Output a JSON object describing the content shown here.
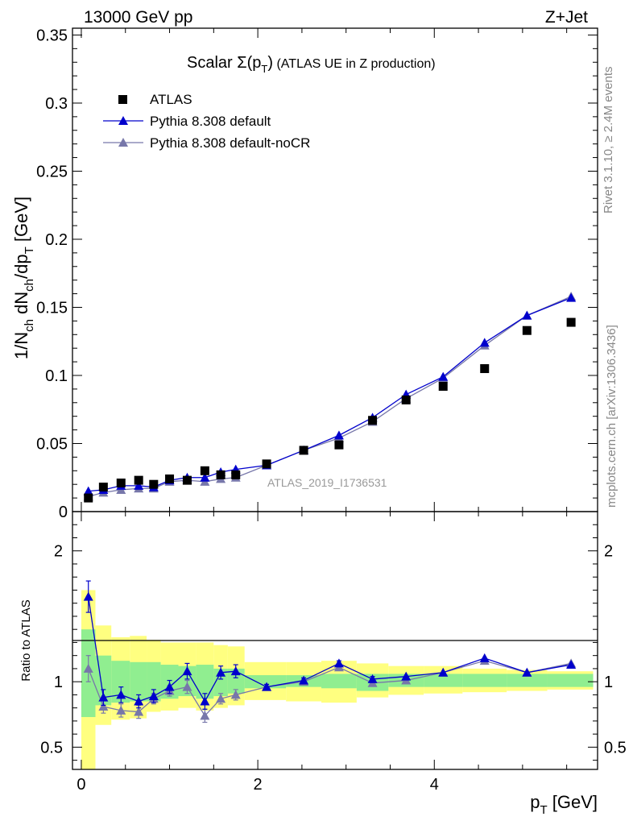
{
  "header": {
    "left": "13000 GeV pp",
    "right": "Z+Jet"
  },
  "side_labels": {
    "rivet": "Rivet 3.1.10, ≥ 2.4M events",
    "mcplots": "mcplots.cern.ch [arXiv:1306.3436]"
  },
  "chart_data": {
    "type": "scatter",
    "title_main": "Scalar ",
    "title_sigma": "Σ(p",
    "title_sub": "T",
    "title_close": ")",
    "title_rest": " (ATLAS UE in Z production)",
    "ylabel": "1/N_ch dN_ch/dp_T [GeV]",
    "xlabel": "p_T [GeV]",
    "ratio_ylabel": "Ratio to ATLAS",
    "analysis_label": "ATLAS_2019_I1736531",
    "xlim": [
      -0.1,
      5.85
    ],
    "ylim": [
      0,
      0.355
    ],
    "ratio_ylim": [
      0.33,
      2.3
    ],
    "y_ticks": [
      0,
      0.05,
      0.1,
      0.15,
      0.2,
      0.25,
      0.3,
      0.35
    ],
    "y_tick_labels": [
      "0",
      "0.05",
      "0.1",
      "0.15",
      "0.2",
      "0.25",
      "0.3",
      "0.35"
    ],
    "x_ticks": [
      0,
      2,
      4
    ],
    "x_tick_labels": [
      "0",
      "2",
      "4"
    ],
    "ratio_ticks": [
      0.5,
      1,
      2
    ],
    "ratio_tick_labels": [
      "0.5",
      "1",
      "2"
    ],
    "legend_position": "top-left",
    "legend": [
      {
        "label": "ATLAS",
        "marker": "square",
        "color": "#000000"
      },
      {
        "label": "Pythia 8.308 default",
        "marker": "triangle",
        "color": "#0000cc"
      },
      {
        "label": "Pythia 8.308 default-noCR",
        "marker": "triangle",
        "color": "#7777aa"
      }
    ],
    "x": [
      0.08,
      0.25,
      0.45,
      0.65,
      0.82,
      1.0,
      1.2,
      1.4,
      1.58,
      1.75,
      2.1,
      2.52,
      2.92,
      3.3,
      3.68,
      4.1,
      4.57,
      5.05,
      5.55
    ],
    "x_edges": [
      0,
      0.16,
      0.34,
      0.55,
      0.74,
      0.9,
      1.1,
      1.3,
      1.5,
      1.66,
      1.85,
      2.32,
      2.72,
      3.12,
      3.48,
      3.88,
      4.32,
      4.82,
      5.28,
      5.8
    ],
    "series": [
      {
        "name": "ATLAS",
        "values": [
          0.01,
          0.018,
          0.021,
          0.023,
          0.02,
          0.024,
          0.023,
          0.03,
          0.027,
          0.027,
          0.035,
          0.045,
          0.049,
          0.067,
          0.082,
          0.092,
          0.105,
          0.133,
          0.139
        ],
        "color": "#000000"
      },
      {
        "name": "Pythia 8.308 default",
        "values": [
          0.015,
          0.016,
          0.019,
          0.019,
          0.018,
          0.023,
          0.025,
          0.025,
          0.029,
          0.031,
          0.034,
          0.045,
          0.056,
          0.069,
          0.086,
          0.099,
          0.124,
          0.144,
          0.157
        ],
        "color": "#0000cc"
      },
      {
        "name": "Pythia 8.308 default-noCR",
        "values": [
          0.011,
          0.014,
          0.016,
          0.017,
          0.017,
          0.022,
          0.023,
          0.022,
          0.024,
          0.025,
          0.034,
          0.045,
          0.054,
          0.066,
          0.083,
          0.098,
          0.122,
          0.144,
          0.158
        ],
        "color": "#7777aa"
      }
    ],
    "ratio_series": [
      {
        "name": "Pythia 8.308 default",
        "values": [
          1.65,
          0.88,
          0.9,
          0.85,
          0.89,
          0.96,
          1.08,
          0.85,
          1.07,
          1.08,
          0.96,
          1.01,
          1.14,
          1.02,
          1.04,
          1.07,
          1.18,
          1.07,
          1.13
        ],
        "errors": [
          0.12,
          0.06,
          0.06,
          0.05,
          0.05,
          0.05,
          0.06,
          0.06,
          0.05,
          0.05,
          0.02,
          0.02,
          0.02,
          0.02,
          0.01,
          0.01,
          0.01,
          0.01,
          0.01
        ],
        "color": "#0000cc"
      },
      {
        "name": "Pythia 8.308 default-noCR",
        "values": [
          1.1,
          0.81,
          0.78,
          0.77,
          0.87,
          0.93,
          0.96,
          0.74,
          0.87,
          0.9,
          0.96,
          1.0,
          1.11,
          0.99,
          1.01,
          1.07,
          1.16,
          1.07,
          1.14
        ],
        "errors": [
          0.1,
          0.05,
          0.05,
          0.05,
          0.04,
          0.04,
          0.05,
          0.05,
          0.04,
          0.04,
          0.02,
          0.02,
          0.02,
          0.02,
          0.01,
          0.01,
          0.01,
          0.01,
          0.01
        ],
        "color": "#7777aa"
      }
    ],
    "band_inner": {
      "lo": [
        0.73,
        0.82,
        0.84,
        0.85,
        0.85,
        0.87,
        0.89,
        0.87,
        0.89,
        0.91,
        0.95,
        0.96,
        0.95,
        0.93,
        0.96,
        0.96,
        0.96,
        0.96,
        0.96
      ],
      "hi": [
        1.4,
        1.2,
        1.16,
        1.15,
        1.15,
        1.13,
        1.12,
        1.13,
        1.1,
        1.1,
        1.05,
        1.05,
        1.06,
        1.06,
        1.06,
        1.06,
        1.06,
        1.06,
        1.06
      ],
      "color": "#90ee90"
    },
    "band_outer": {
      "lo": [
        0.33,
        0.67,
        0.71,
        0.72,
        0.77,
        0.78,
        0.8,
        0.78,
        0.8,
        0.82,
        0.86,
        0.85,
        0.84,
        0.88,
        0.9,
        0.91,
        0.92,
        0.93,
        0.94
      ],
      "hi": [
        1.7,
        1.43,
        1.34,
        1.35,
        1.32,
        1.3,
        1.3,
        1.3,
        1.28,
        1.27,
        1.15,
        1.15,
        1.16,
        1.14,
        1.12,
        1.12,
        1.1,
        1.09,
        1.08
      ],
      "color": "#ffff80"
    }
  }
}
